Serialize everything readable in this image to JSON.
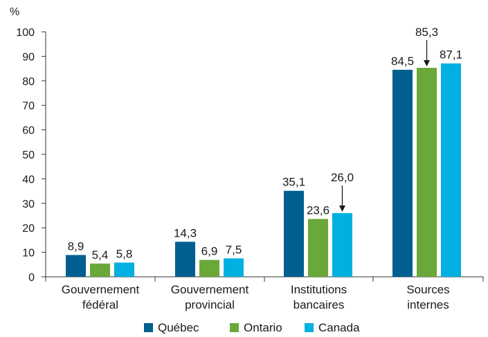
{
  "chart_data": {
    "type": "bar",
    "y_unit": "%",
    "ylim": [
      0,
      100
    ],
    "yticks": [
      0,
      10,
      20,
      30,
      40,
      50,
      60,
      70,
      80,
      90,
      100
    ],
    "grid": false,
    "legend_position": "bottom",
    "categories": [
      [
        "Gouvernement",
        "fédéral"
      ],
      [
        "Gouvernement",
        "provincial"
      ],
      [
        "Institutions",
        "bancaires"
      ],
      [
        "Sources",
        "internes"
      ]
    ],
    "series": [
      {
        "name": "Québec",
        "color": "#005f8f",
        "values": [
          8.9,
          14.3,
          35.1,
          84.5
        ],
        "labels": [
          "8,9",
          "14,3",
          "35,1",
          "84,5"
        ]
      },
      {
        "name": "Ontario",
        "color": "#6aa83a",
        "values": [
          5.4,
          6.9,
          23.6,
          85.3
        ],
        "labels": [
          "5,4",
          "6,9",
          "23,6",
          "85,3"
        ]
      },
      {
        "name": "Canada",
        "color": "#00b0e0",
        "values": [
          5.8,
          7.5,
          26.0,
          87.1
        ],
        "labels": [
          "5,8",
          "7,5",
          "26,0",
          "87,1"
        ]
      }
    ],
    "annotations": [
      {
        "label": "26,0",
        "category_index": 2,
        "series_index": 2,
        "arrow": true
      },
      {
        "label": "85,3",
        "category_index": 3,
        "series_index": 1,
        "arrow": true
      }
    ]
  }
}
